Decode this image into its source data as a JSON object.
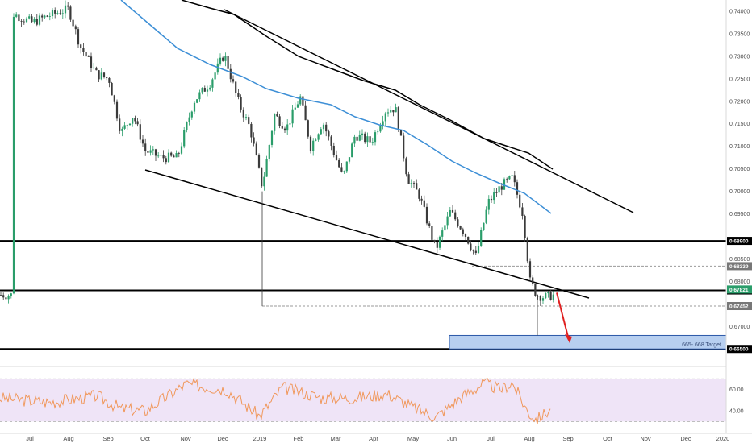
{
  "chart_data": {
    "type": "candlestick",
    "price_axis": {
      "ticks": [
        "0.74000",
        "0.73500",
        "0.73000",
        "0.72500",
        "0.72000",
        "0.71500",
        "0.71000",
        "0.70500",
        "0.70000",
        "0.69500",
        "0.68500",
        "0.68000",
        "0.67500",
        "0.67000"
      ],
      "range": [
        0.662,
        0.7425
      ]
    },
    "time_axis": {
      "ticks": [
        "Jul",
        "Aug",
        "Sep",
        "Oct",
        "Nov",
        "Dec",
        "2019",
        "Feb",
        "Mar",
        "Apr",
        "May",
        "Jun",
        "Jul",
        "Aug",
        "Sep",
        "Oct",
        "Nov",
        "Dec",
        "2020"
      ]
    },
    "horizontal_levels": [
      {
        "value": 0.689,
        "label": "0.68900",
        "style": "solid"
      },
      {
        "value": 0.678,
        "label": "0.67800",
        "style": "solid"
      },
      {
        "value": 0.665,
        "label": "0.66500",
        "style": "solid"
      },
      {
        "value": 0.68339,
        "label": "0.68339",
        "style": "dashed"
      },
      {
        "value": 0.67452,
        "label": "0.67452",
        "style": "dashed"
      }
    ],
    "current_price": {
      "value": 0.67821,
      "label": "0.67821"
    },
    "target_zone": {
      "low": 0.665,
      "high": 0.668,
      "label": ".665-.668 Target"
    },
    "series": [
      {
        "kind": "candles",
        "color_up": "#2a9d6a",
        "color_down": "#3a3a3a"
      },
      {
        "kind": "moving_average",
        "color": "#3d8fd6"
      },
      {
        "kind": "moving_average",
        "color": "#000000"
      }
    ],
    "rsi": {
      "ticks": [
        "60.00",
        "40.00"
      ],
      "range": [
        25,
        80
      ],
      "line_color": "#f0975a",
      "band_color": "#efe4f7"
    },
    "annotations": [
      {
        "type": "arrow",
        "color": "#e02020",
        "direction": "down"
      },
      {
        "type": "channel_upper_trendline"
      },
      {
        "type": "channel_lower_trendline"
      }
    ]
  }
}
